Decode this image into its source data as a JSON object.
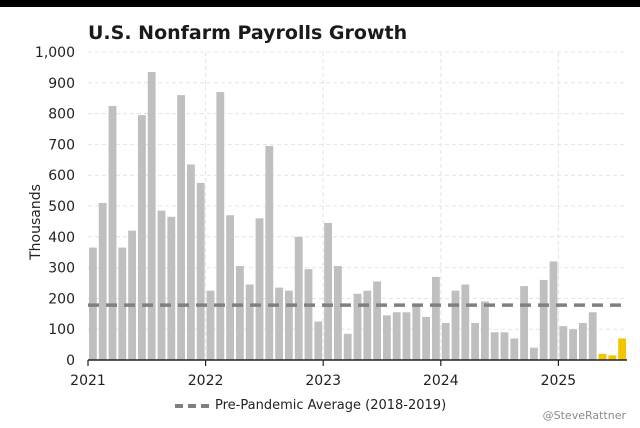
{
  "chart_data": {
    "type": "bar",
    "title": "U.S. Nonfarm Payrolls Growth",
    "xlabel": "",
    "ylabel": "Thousands",
    "ylim": [
      0,
      1000
    ],
    "yticks": [
      "0",
      "100",
      "200",
      "300",
      "400",
      "500",
      "600",
      "700",
      "800",
      "900",
      "1,000"
    ],
    "x_tick_labels": [
      "2021",
      "2022",
      "2023",
      "2024",
      "2025"
    ],
    "categories": [
      "2021-01",
      "2021-02",
      "2021-03",
      "2021-04",
      "2021-05",
      "2021-06",
      "2021-07",
      "2021-08",
      "2021-09",
      "2021-10",
      "2021-11",
      "2021-12",
      "2022-01",
      "2022-02",
      "2022-03",
      "2022-04",
      "2022-05",
      "2022-06",
      "2022-07",
      "2022-08",
      "2022-09",
      "2022-10",
      "2022-11",
      "2022-12",
      "2023-01",
      "2023-02",
      "2023-03",
      "2023-04",
      "2023-05",
      "2023-06",
      "2023-07",
      "2023-08",
      "2023-09",
      "2023-10",
      "2023-11",
      "2023-12",
      "2024-01",
      "2024-02",
      "2024-03",
      "2024-04",
      "2024-05",
      "2024-06",
      "2024-07",
      "2024-08",
      "2024-09",
      "2024-10",
      "2024-11",
      "2024-12",
      "2025-01",
      "2025-02",
      "2025-03",
      "2025-04",
      "2025-05",
      "2025-06",
      "2025-07"
    ],
    "values": [
      365,
      510,
      825,
      365,
      420,
      795,
      935,
      485,
      465,
      860,
      635,
      575,
      225,
      870,
      470,
      305,
      245,
      460,
      695,
      235,
      225,
      400,
      295,
      125,
      445,
      305,
      85,
      215,
      225,
      255,
      145,
      155,
      155,
      180,
      140,
      270,
      120,
      225,
      245,
      120,
      190,
      90,
      90,
      70,
      240,
      40,
      260,
      320,
      110,
      100,
      120,
      155,
      20,
      15,
      70
    ],
    "highlight_from_index": 52,
    "bar_color": "#bfbfbf",
    "highlight_color": "#f5c400",
    "reference_line": {
      "label": "Pre-Pandemic Average (2018-2019)",
      "value": 178,
      "color": "#808080"
    },
    "grid": true,
    "legend": "bottom-center"
  },
  "credit": "@SteveRattner"
}
